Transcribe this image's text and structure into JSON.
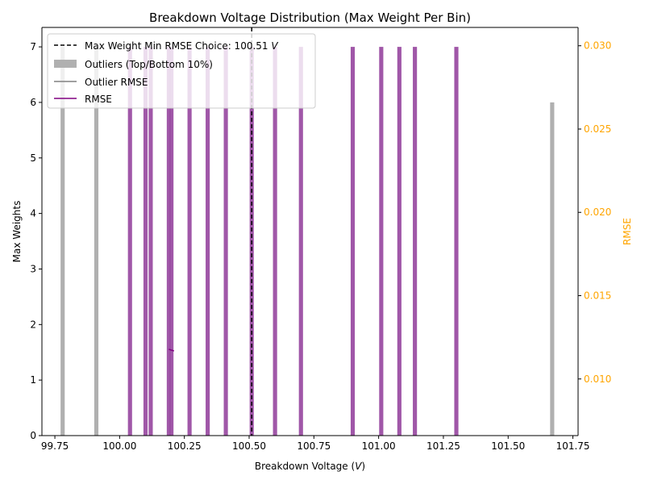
{
  "chart_data": {
    "type": "bar",
    "title": "Breakdown Voltage Distribution (Max Weight Per Bin)",
    "xlabel": "Breakdown Voltage (",
    "xlabel_unit": "V",
    "xlabel_close": ")",
    "ylabel": "Max Weights",
    "y2label": "RMSE",
    "xlim": [
      99.7,
      101.77
    ],
    "ylim": [
      0,
      7.35
    ],
    "y2lim": [
      0.0066,
      0.0311
    ],
    "xticks": [
      "99.75",
      "100.00",
      "100.25",
      "100.50",
      "100.75",
      "101.00",
      "101.25",
      "101.50",
      "101.75"
    ],
    "xtick_values": [
      99.75,
      100.0,
      100.25,
      100.5,
      100.75,
      101.0,
      101.25,
      101.5,
      101.75
    ],
    "yticks": [
      "0",
      "1",
      "2",
      "3",
      "4",
      "5",
      "6",
      "7"
    ],
    "ytick_values": [
      0,
      1,
      2,
      3,
      4,
      5,
      6,
      7
    ],
    "y2ticks": [
      "0.010",
      "0.015",
      "0.020",
      "0.025",
      "0.030"
    ],
    "y2tick_values": [
      0.01,
      0.015,
      0.02,
      0.025,
      0.03
    ],
    "bar_width": 0.016,
    "outlier_bars": {
      "name": "Outliers (Top/Bottom 10%)",
      "color": "#b0b0b0",
      "x": [
        99.78,
        99.91,
        101.67
      ],
      "values": [
        7,
        7,
        6
      ]
    },
    "main_bars": {
      "color": "#9b4ea3",
      "x": [
        100.04,
        100.1,
        100.12,
        100.19,
        100.2,
        100.27,
        100.34,
        100.41,
        100.51,
        100.6,
        100.7,
        100.9,
        101.01,
        101.08,
        101.14,
        101.3
      ],
      "values": [
        7,
        7,
        7,
        7,
        7,
        7,
        7,
        7,
        7,
        7,
        7,
        7,
        7,
        7,
        7,
        7
      ]
    },
    "rmse_series": {
      "name": "RMSE",
      "color": "#800080",
      "x": [
        100.19,
        100.21
      ],
      "values": [
        0.01178,
        0.01168
      ]
    },
    "outlier_rmse_name": "Outlier RMSE",
    "vline": {
      "label": "Max Weight Min RMSE Choice: 100.51",
      "unit": "V",
      "x": 100.51
    },
    "legend_position": "upper-left",
    "grid": false,
    "colors": {
      "axis": "#000000",
      "right_axis": "#ffa500",
      "outlier": "#b0b0b0",
      "outlier_line": "#808080",
      "bar": "#9b4ea3",
      "rmse": "#800080"
    }
  }
}
